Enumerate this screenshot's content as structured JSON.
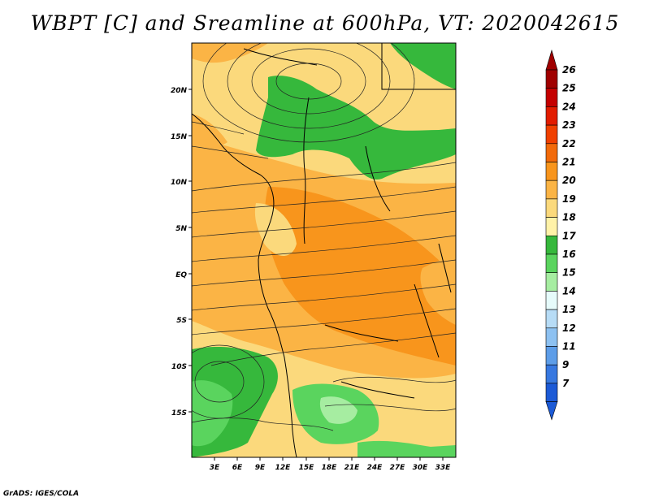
{
  "title": "WBPT [C] and Sreamline at 600hPa, VT: 2020042615",
  "credit": "GrADS: IGES/COLA",
  "map": {
    "lat_labels": [
      "20N",
      "15N",
      "10N",
      "5N",
      "EQ",
      "5S",
      "10S",
      "15S"
    ],
    "lon_labels": [
      "3E",
      "6E",
      "9E",
      "12E",
      "15E",
      "18E",
      "21E",
      "24E",
      "27E",
      "30E",
      "33E"
    ]
  },
  "legend": {
    "labels": [
      "26",
      "25",
      "24",
      "23",
      "22",
      "21",
      "20",
      "19",
      "18",
      "17",
      "16",
      "15",
      "14",
      "13",
      "12",
      "11",
      "9",
      "7"
    ],
    "colors": [
      "#a00000",
      "#c40000",
      "#e21c00",
      "#f04000",
      "#f26a0a",
      "#f8951c",
      "#fbb445",
      "#fbd97c",
      "#fff2a8",
      "#36b83c",
      "#5ad45e",
      "#a6eda1",
      "#e6fbfb",
      "#b7dcf6",
      "#8dc1f1",
      "#5d9de8",
      "#3778e0",
      "#1c5ad6"
    ],
    "top_arrow_color": "#a00000",
    "bottom_arrow_color": "#1c5ad6"
  }
}
